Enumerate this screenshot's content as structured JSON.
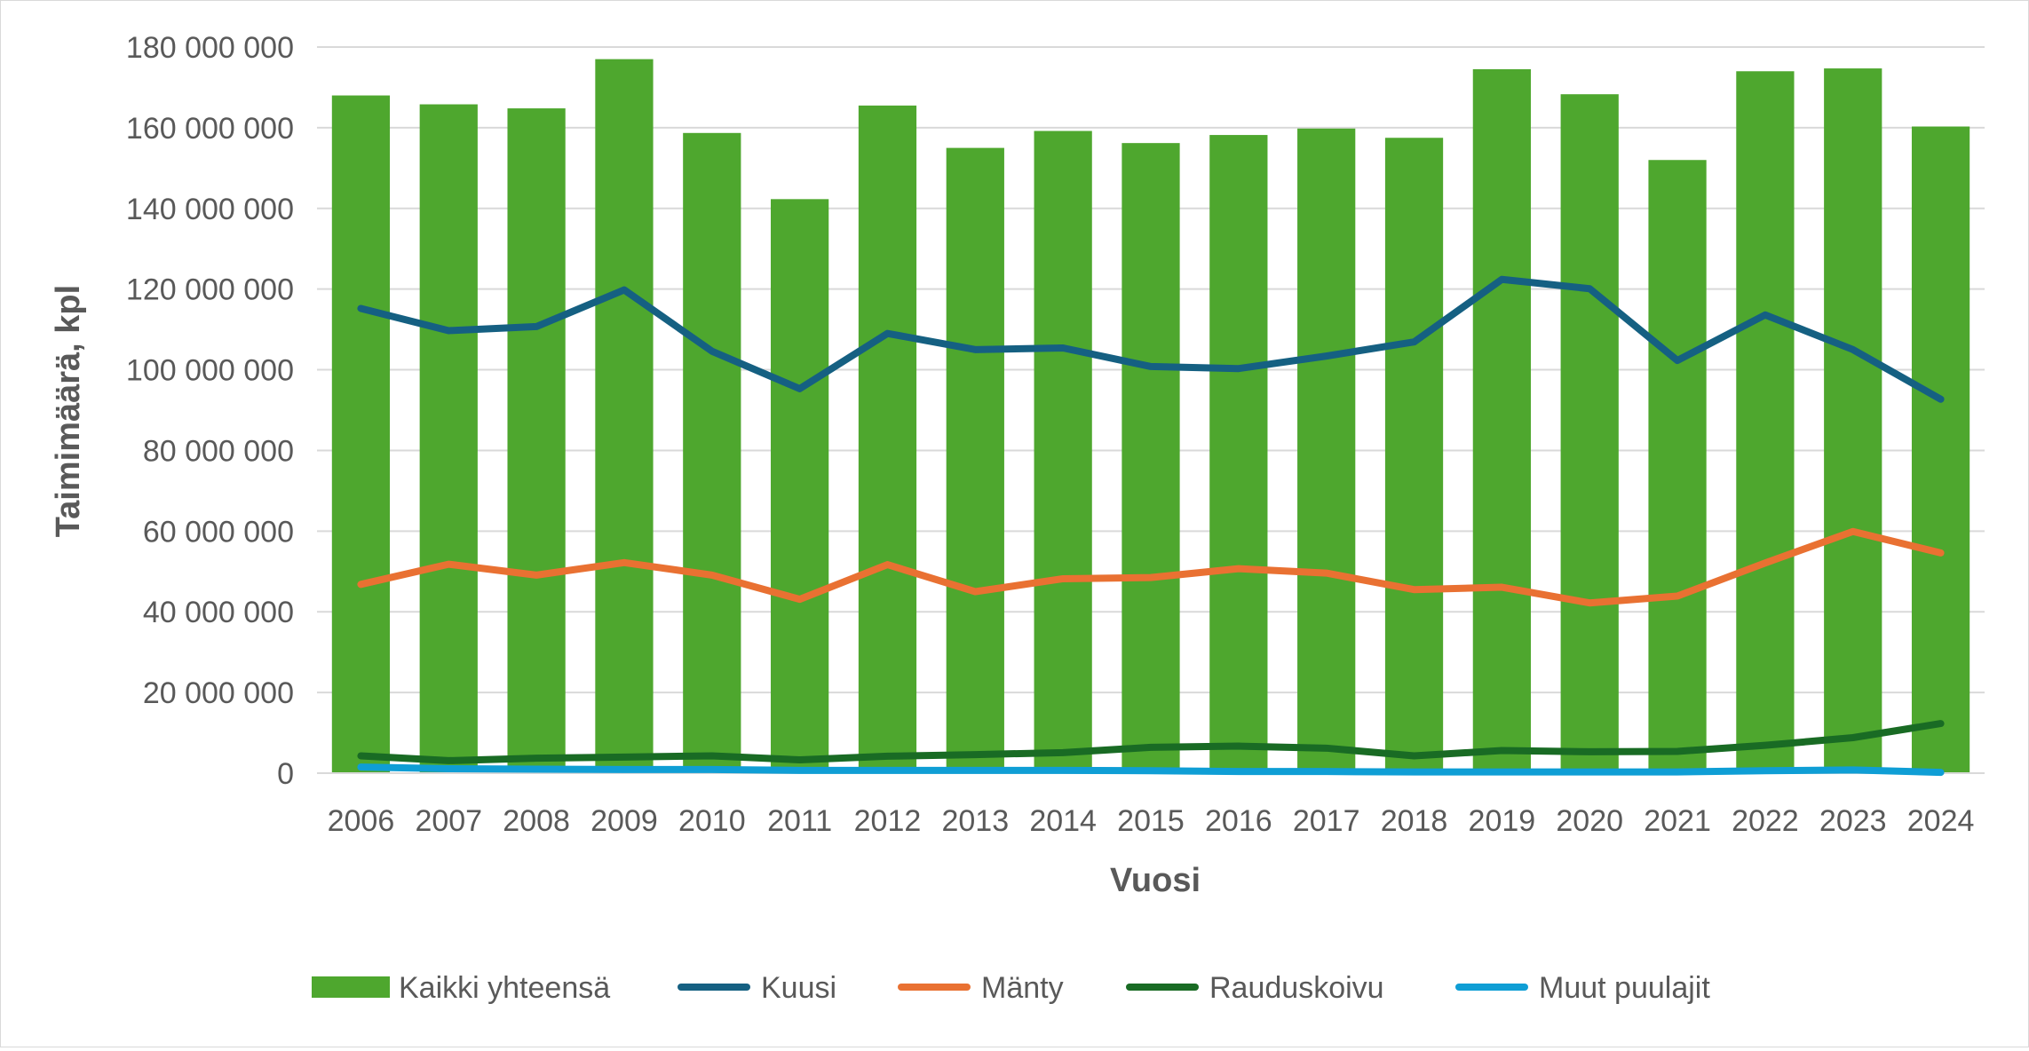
{
  "chart_data": {
    "type": "bar",
    "title": "",
    "xlabel": "Vuosi",
    "ylabel": "Taimimäärä, kpl",
    "ylim": [
      0,
      180000000
    ],
    "yticks": [
      0,
      20000000,
      40000000,
      60000000,
      80000000,
      100000000,
      120000000,
      140000000,
      160000000,
      180000000
    ],
    "ytick_labels": [
      "0",
      "20 000 000",
      "40 000 000",
      "60 000 000",
      "80 000 000",
      "100 000 000",
      "120 000 000",
      "140 000 000",
      "160 000 000",
      "180 000 000"
    ],
    "categories": [
      "2006",
      "2007",
      "2008",
      "2009",
      "2010",
      "2011",
      "2012",
      "2013",
      "2014",
      "2015",
      "2016",
      "2017",
      "2018",
      "2019",
      "2020",
      "2021",
      "2022",
      "2023",
      "2024"
    ],
    "grid": true,
    "legend_position": "bottom",
    "series": [
      {
        "name": "Kaikki yhteensä",
        "type": "bar",
        "color": "#4ea72e",
        "values": [
          168000000,
          165800000,
          164800000,
          177000000,
          158700000,
          142300000,
          165500000,
          155000000,
          159200000,
          156200000,
          158200000,
          159800000,
          157500000,
          174500000,
          168300000,
          152000000,
          174000000,
          174700000,
          160300000
        ]
      },
      {
        "name": "Kuusi",
        "type": "line",
        "color": "#156082",
        "values": [
          115200000,
          109700000,
          110700000,
          119800000,
          104600000,
          95300000,
          109000000,
          105000000,
          105400000,
          100800000,
          100300000,
          103400000,
          106900000,
          122400000,
          120100000,
          102300000,
          113600000,
          105000000,
          92700000
        ]
      },
      {
        "name": "Mänty",
        "type": "line",
        "color": "#e97132",
        "values": [
          46800000,
          51800000,
          49100000,
          52200000,
          49100000,
          43100000,
          51700000,
          45000000,
          48200000,
          48500000,
          50700000,
          49600000,
          45500000,
          46100000,
          42200000,
          43900000,
          52100000,
          59900000,
          54600000
        ]
      },
      {
        "name": "Rauduskoivu",
        "type": "line",
        "color": "#196b24",
        "values": [
          4300000,
          3100000,
          3700000,
          4000000,
          4300000,
          3300000,
          4200000,
          4600000,
          5100000,
          6400000,
          6700000,
          6200000,
          4300000,
          5600000,
          5300000,
          5400000,
          6900000,
          8800000,
          12300000
        ]
      },
      {
        "name": "Muut puulajit",
        "type": "line",
        "color": "#0f9ed5",
        "values": [
          1500000,
          1100000,
          1000000,
          900000,
          900000,
          700000,
          700000,
          700000,
          700000,
          600000,
          400000,
          400000,
          300000,
          300000,
          300000,
          300000,
          600000,
          800000,
          200000
        ]
      }
    ]
  }
}
